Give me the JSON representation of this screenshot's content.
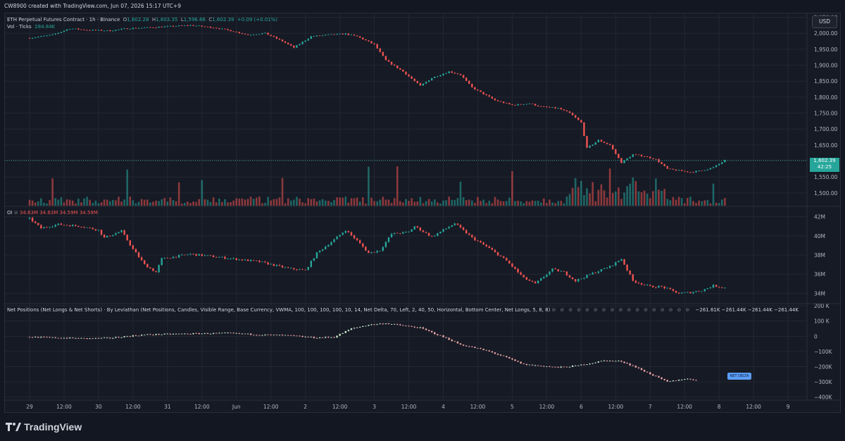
{
  "header": {
    "created_by": "CW8900 created with TradingView.com, Jun 07, 2026 15:17 UTC+9"
  },
  "currency_button": "USD",
  "legend": {
    "symbol": "ETH Perpetual Futures Contract · 1h · Binance",
    "o_label": "O",
    "o": "1,602.28",
    "h_label": "H",
    "h": "1,603.35",
    "l_label": "L",
    "l": "1,596.66",
    "c_label": "C",
    "c": "1,602.39",
    "change": "+0.09 (+0.01%)",
    "vol_label": "Vol · Ticks",
    "vol": "284.84K",
    "oi_label": "OI",
    "oi_values": "34.63M  34.63M  34.59M  34.59M",
    "np_label": "Net Positions (Net Longs & Net Shorts) · By Leviathan (Net Positions, Candles, Visible Range, Base Currency, VWMA, 100, 100, 100, 100, 10, 14, Net Delta, 70, Left, 2, 40, 50, Horizontal, Bottom Center, Net Longs, 5, 8, 8)",
    "np_values": "−261.61K  −261.44K  −261.44K  −261.44K"
  },
  "price_tag": {
    "price": "1,602.39",
    "countdown": "42:25"
  },
  "net_delta_tag": "NET DELTA",
  "brand": "TradingView",
  "colors": {
    "up": "#26a69a",
    "down": "#ef5350",
    "np_up": "#c8e6c9",
    "np_down": "#f3a8a8",
    "bg": "#161a25",
    "grid": "#232733"
  },
  "chart_data": [
    {
      "type": "candlestick",
      "title": "ETH Perpetual Futures Contract · 1h · Binance",
      "ylabel": "USD",
      "ylim": [
        1460,
        2060
      ],
      "y_ticks": [
        "2,050.00",
        "2,000.00",
        "1,950.00",
        "1,900.00",
        "1,850.00",
        "1,800.00",
        "1,750.00",
        "1,700.00",
        "1,650.00",
        "1,600.00",
        "1,550.00",
        "1,500.00"
      ],
      "y_tick_values": [
        2050,
        2000,
        1950,
        1900,
        1850,
        1800,
        1750,
        1700,
        1650,
        1600,
        1550,
        1500
      ],
      "x_ticks": [
        "29",
        "12:00",
        "30",
        "12:00",
        "31",
        "12:00",
        "Jun",
        "12:00",
        "2",
        "12:00",
        "3",
        "12:00",
        "4",
        "12:00",
        "5",
        "12:00",
        "6",
        "12:00",
        "7",
        "12:00",
        "8",
        "12:00",
        "9"
      ],
      "x_tick_hours": [
        0,
        12,
        24,
        36,
        48,
        60,
        72,
        84,
        96,
        108,
        120,
        132,
        144,
        156,
        168,
        180,
        192,
        204,
        216,
        228,
        240,
        252,
        264
      ],
      "keyframes": [
        [
          0,
          1985
        ],
        [
          8,
          1995
        ],
        [
          14,
          2015
        ],
        [
          20,
          2010
        ],
        [
          28,
          2008
        ],
        [
          34,
          2015
        ],
        [
          42,
          2018
        ],
        [
          50,
          2022
        ],
        [
          56,
          2025
        ],
        [
          64,
          2018
        ],
        [
          70,
          2008
        ],
        [
          76,
          1995
        ],
        [
          82,
          2000
        ],
        [
          88,
          1975
        ],
        [
          92,
          1955
        ],
        [
          98,
          1990
        ],
        [
          104,
          1995
        ],
        [
          110,
          1998
        ],
        [
          114,
          1990
        ],
        [
          120,
          1965
        ],
        [
          124,
          1915
        ],
        [
          130,
          1880
        ],
        [
          136,
          1835
        ],
        [
          140,
          1860
        ],
        [
          146,
          1880
        ],
        [
          150,
          1870
        ],
        [
          154,
          1830
        ],
        [
          158,
          1810
        ],
        [
          162,
          1790
        ],
        [
          168,
          1775
        ],
        [
          174,
          1780
        ],
        [
          178,
          1770
        ],
        [
          184,
          1765
        ],
        [
          188,
          1750
        ],
        [
          192,
          1720
        ],
        [
          194,
          1640
        ],
        [
          198,
          1665
        ],
        [
          202,
          1650
        ],
        [
          206,
          1595
        ],
        [
          210,
          1620
        ],
        [
          214,
          1615
        ],
        [
          218,
          1605
        ],
        [
          222,
          1575
        ],
        [
          226,
          1570
        ],
        [
          230,
          1565
        ],
        [
          234,
          1570
        ],
        [
          238,
          1580
        ],
        [
          242,
          1602
        ]
      ],
      "last": {
        "open": 1602.28,
        "high": 1603.35,
        "low": 1596.66,
        "close": 1602.39
      }
    },
    {
      "type": "bar",
      "title": "Vol · Ticks",
      "last_value": 284.84,
      "spikes_hour": [
        8,
        34,
        52,
        60,
        88,
        118,
        128,
        150,
        168,
        190,
        192,
        196,
        202,
        210,
        218,
        238
      ]
    },
    {
      "type": "candlestick",
      "title": "OI",
      "ylabel": "M",
      "ylim": [
        33.0,
        43.0
      ],
      "y_ticks": [
        "42M",
        "40M",
        "38M",
        "36M",
        "34M"
      ],
      "y_tick_values": [
        42,
        40,
        38,
        36,
        34
      ],
      "keyframes": [
        [
          0,
          41.8
        ],
        [
          4,
          40.8
        ],
        [
          10,
          41.2
        ],
        [
          18,
          41.0
        ],
        [
          24,
          40.6
        ],
        [
          26,
          39.8
        ],
        [
          32,
          40.5
        ],
        [
          36,
          38.6
        ],
        [
          40,
          37.0
        ],
        [
          44,
          36.2
        ],
        [
          46,
          37.6
        ],
        [
          56,
          38.1
        ],
        [
          68,
          37.7
        ],
        [
          80,
          37.3
        ],
        [
          90,
          36.6
        ],
        [
          96,
          36.4
        ],
        [
          100,
          38.2
        ],
        [
          106,
          39.6
        ],
        [
          110,
          40.6
        ],
        [
          114,
          39.5
        ],
        [
          118,
          38.2
        ],
        [
          122,
          38.5
        ],
        [
          126,
          40.2
        ],
        [
          132,
          40.4
        ],
        [
          134,
          41.0
        ],
        [
          140,
          39.9
        ],
        [
          148,
          41.3
        ],
        [
          154,
          39.8
        ],
        [
          160,
          38.7
        ],
        [
          166,
          37.4
        ],
        [
          172,
          35.6
        ],
        [
          176,
          35.0
        ],
        [
          182,
          36.5
        ],
        [
          186,
          36.2
        ],
        [
          190,
          35.3
        ],
        [
          196,
          36.1
        ],
        [
          202,
          36.8
        ],
        [
          206,
          37.6
        ],
        [
          210,
          35.3
        ],
        [
          216,
          34.7
        ],
        [
          220,
          34.7
        ],
        [
          226,
          34.0
        ],
        [
          230,
          34.1
        ],
        [
          234,
          34.3
        ],
        [
          238,
          34.8
        ],
        [
          242,
          34.59
        ]
      ],
      "last_value": 34.59
    },
    {
      "type": "candlestick",
      "title": "Net Positions (Net Longs & Net Shorts)",
      "ylabel": "K",
      "ylim": [
        -420,
        210
      ],
      "y_ticks": [
        "200 K",
        "100 K",
        "0",
        "−100K",
        "−200K",
        "−300K",
        "−400K"
      ],
      "y_tick_values": [
        200,
        100,
        0,
        -100,
        -200,
        -300,
        -400
      ],
      "keyframes": [
        [
          0,
          -5
        ],
        [
          10,
          -10
        ],
        [
          20,
          -15
        ],
        [
          28,
          -12
        ],
        [
          34,
          0
        ],
        [
          40,
          10
        ],
        [
          50,
          15
        ],
        [
          60,
          18
        ],
        [
          70,
          20
        ],
        [
          80,
          10
        ],
        [
          90,
          5
        ],
        [
          100,
          -10
        ],
        [
          106,
          -5
        ],
        [
          112,
          50
        ],
        [
          118,
          75
        ],
        [
          124,
          85
        ],
        [
          130,
          70
        ],
        [
          136,
          55
        ],
        [
          140,
          25
        ],
        [
          146,
          -20
        ],
        [
          150,
          -55
        ],
        [
          156,
          -80
        ],
        [
          160,
          -100
        ],
        [
          166,
          -140
        ],
        [
          172,
          -185
        ],
        [
          178,
          -195
        ],
        [
          184,
          -205
        ],
        [
          190,
          -195
        ],
        [
          196,
          -175
        ],
        [
          200,
          -160
        ],
        [
          206,
          -165
        ],
        [
          210,
          -195
        ],
        [
          214,
          -230
        ],
        [
          218,
          -265
        ],
        [
          222,
          -300
        ],
        [
          228,
          -280
        ],
        [
          234,
          -290
        ],
        [
          238,
          -300
        ],
        [
          242,
          -310
        ],
        [
          246,
          -330
        ],
        [
          252,
          -310
        ],
        [
          258,
          -305
        ],
        [
          262,
          -300
        ],
        [
          268,
          -285
        ],
        [
          272,
          -275
        ],
        [
          276,
          -265
        ],
        [
          280,
          -262
        ]
      ],
      "last_value": -261.44
    }
  ]
}
